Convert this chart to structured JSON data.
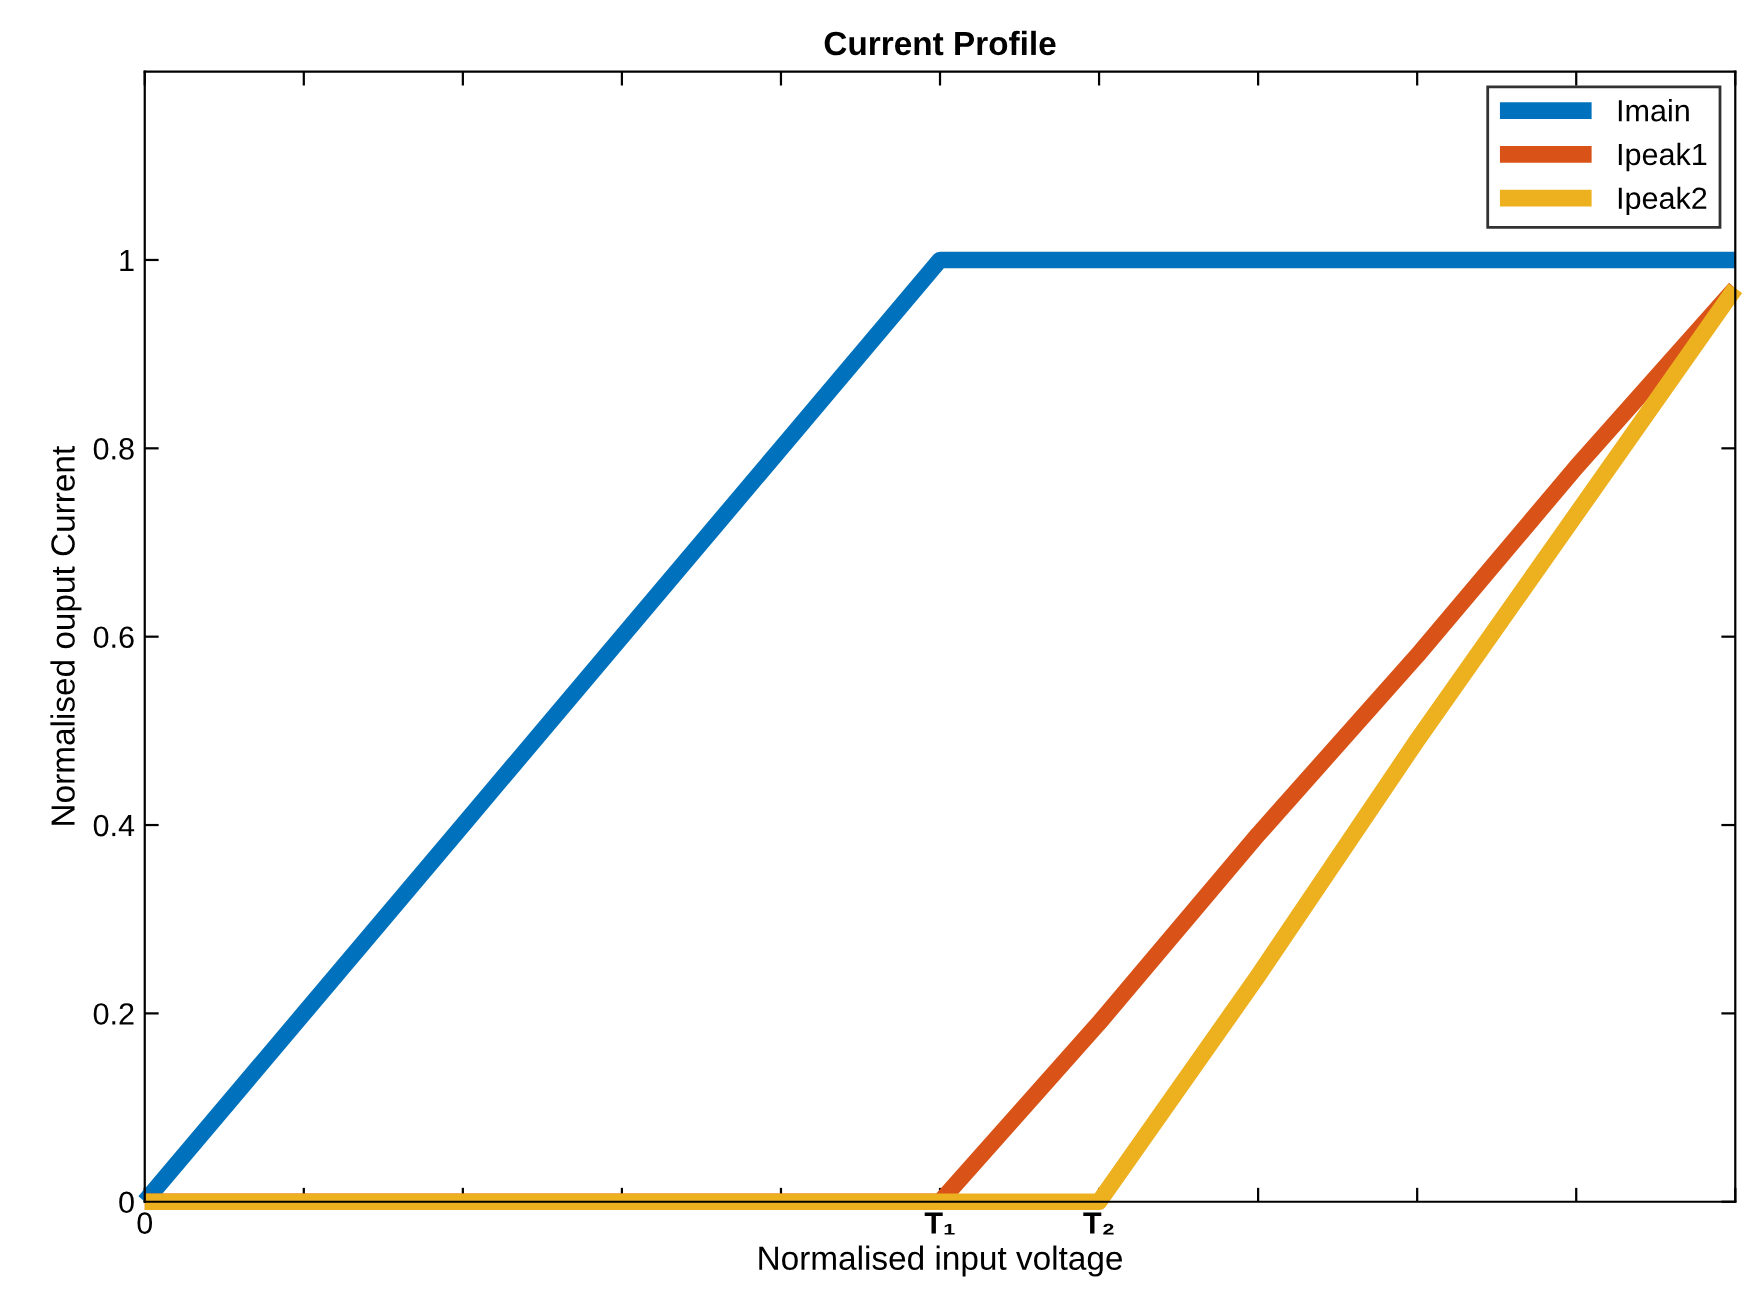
{
  "chart_data": {
    "type": "line",
    "title": "Current Profile",
    "xlabel": "Normalised input voltage",
    "ylabel": "Normalised ouput Current",
    "categories": [
      "0",
      null,
      null,
      null,
      null,
      "T₁",
      "T₂",
      null,
      null,
      null,
      null
    ],
    "ylim": [
      0,
      1.2
    ],
    "yticks": [
      0,
      0.2,
      0.4,
      0.6,
      0.8,
      1
    ],
    "grid": false,
    "legend": "top right",
    "marker": "none",
    "line_style": "solid",
    "series": [
      {
        "name": "Imain",
        "color": "#0072bd",
        "values": [
          0,
          0.2,
          0.4,
          0.6,
          0.8,
          1,
          1,
          1,
          1,
          1,
          1
        ]
      },
      {
        "name": "Ipeak1",
        "color": "#d95319",
        "values": [
          0,
          0,
          0,
          0,
          0,
          0,
          0.19,
          0.39,
          0.58,
          0.78,
          0.97
        ]
      },
      {
        "name": "Ipeak2",
        "color": "#edb120",
        "values": [
          0,
          0,
          0,
          0,
          0,
          0,
          0,
          0.24,
          0.49,
          0.73,
          0.97
        ]
      }
    ]
  }
}
